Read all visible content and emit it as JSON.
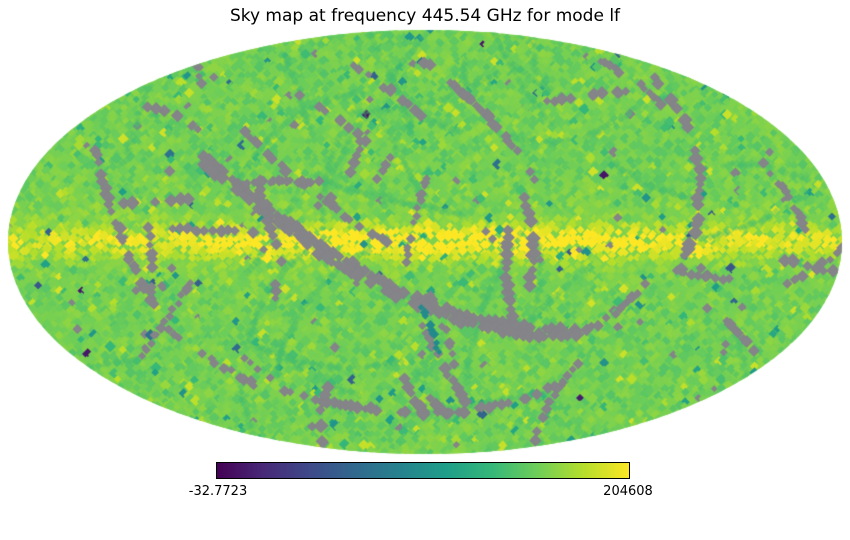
{
  "title": "Sky map at frequency 445.54 GHz for mode lf",
  "colorbar": {
    "min_label": "-32.7723",
    "max_label": "204608",
    "viridis_colors": [
      "#440154",
      "#482878",
      "#3e4989",
      "#31688e",
      "#26828e",
      "#1f9e89",
      "#35b779",
      "#6ece58",
      "#b5de2b",
      "#fde725"
    ],
    "masked_color": "#848489"
  },
  "chart_data": {
    "type": "heatmap",
    "projection": "mollweide",
    "title": "Sky map at frequency 445.54 GHz for mode lf",
    "frequency_ghz": 445.54,
    "mode": "lf",
    "colormap": "viridis",
    "value_min": -32.7723,
    "value_max": 204608,
    "colorbar_orientation": "horizontal",
    "features": [
      "mostly uniform yellow-green sky signal across the ellipse",
      "bright yellow band along the equator, strongest near the map center",
      "gray masked pixels forming curved scan stripes and scattered speckles",
      "sparse teal, blue and dark outlier pixels"
    ]
  }
}
